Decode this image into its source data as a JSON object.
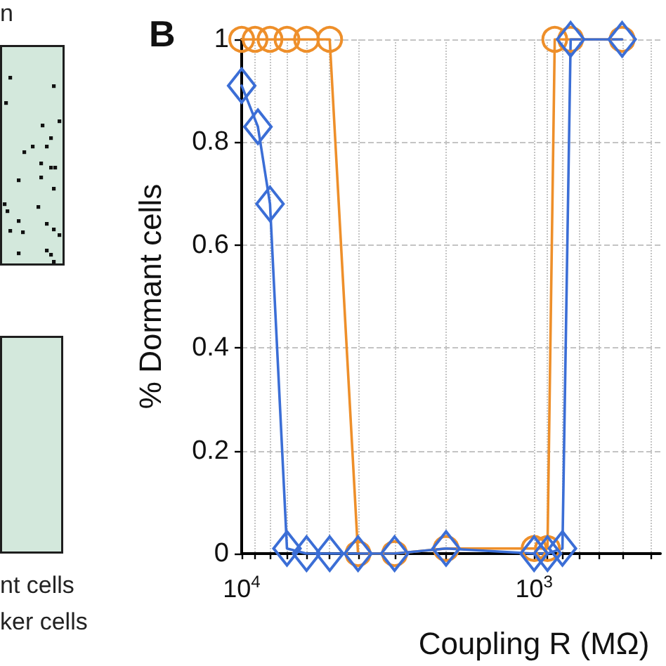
{
  "chart_data": [
    {
      "type": "other",
      "annotations": [
        "n",
        "nt cells",
        "ker cells"
      ]
    },
    {
      "type": "line",
      "title": "B",
      "xlabel": "Coupling R (MΩ)",
      "ylabel": "% Dormant cells",
      "log": "x",
      "xlim": [
        10000,
        370
      ],
      "xticks": [
        {
          "value": 10000,
          "label": "10$^{4}$"
        },
        {
          "value": 9000,
          "label": null
        },
        {
          "value": 8000,
          "label": null
        },
        {
          "value": 7000,
          "label": null
        },
        {
          "value": 6000,
          "label": null
        },
        {
          "value": 5000,
          "label": null
        },
        {
          "value": 4000,
          "label": null
        },
        {
          "value": 3000,
          "label": null
        },
        {
          "value": 2000,
          "label": null
        },
        {
          "value": 1000,
          "label": "10$^{3}$"
        },
        {
          "value": 900,
          "label": null
        },
        {
          "value": 800,
          "label": null
        },
        {
          "value": 700,
          "label": null
        },
        {
          "value": 600,
          "label": null
        },
        {
          "value": 500,
          "label": null
        },
        {
          "value": 400,
          "label": null
        }
      ],
      "ylim": [
        0,
        1
      ],
      "yticks": [
        0,
        0.2,
        0.4,
        0.6,
        0.8,
        1
      ],
      "grid": true,
      "line_style": "solid",
      "series": [
        {
          "color": "#ee8f2a",
          "marker": "circle",
          "x": [
            10000,
            9000,
            8000,
            7000,
            6000,
            5000,
            4000,
            3000,
            2000,
            1000,
            900,
            850,
            750,
            500
          ],
          "values": [
            1,
            1,
            1,
            1,
            1,
            1,
            0,
            0,
            0.01,
            0.01,
            0.01,
            1,
            1,
            1
          ]
        },
        {
          "color": "#3b6ed6",
          "marker": "diamond",
          "x": [
            10000,
            8800,
            8000,
            7000,
            6000,
            5000,
            4000,
            3000,
            2000,
            1000,
            900,
            800,
            750,
            500
          ],
          "values": [
            0.91,
            0.83,
            0.68,
            0.01,
            0,
            0,
            0,
            0,
            0.01,
            0,
            0,
            0.01,
            1,
            1
          ]
        }
      ]
    }
  ]
}
